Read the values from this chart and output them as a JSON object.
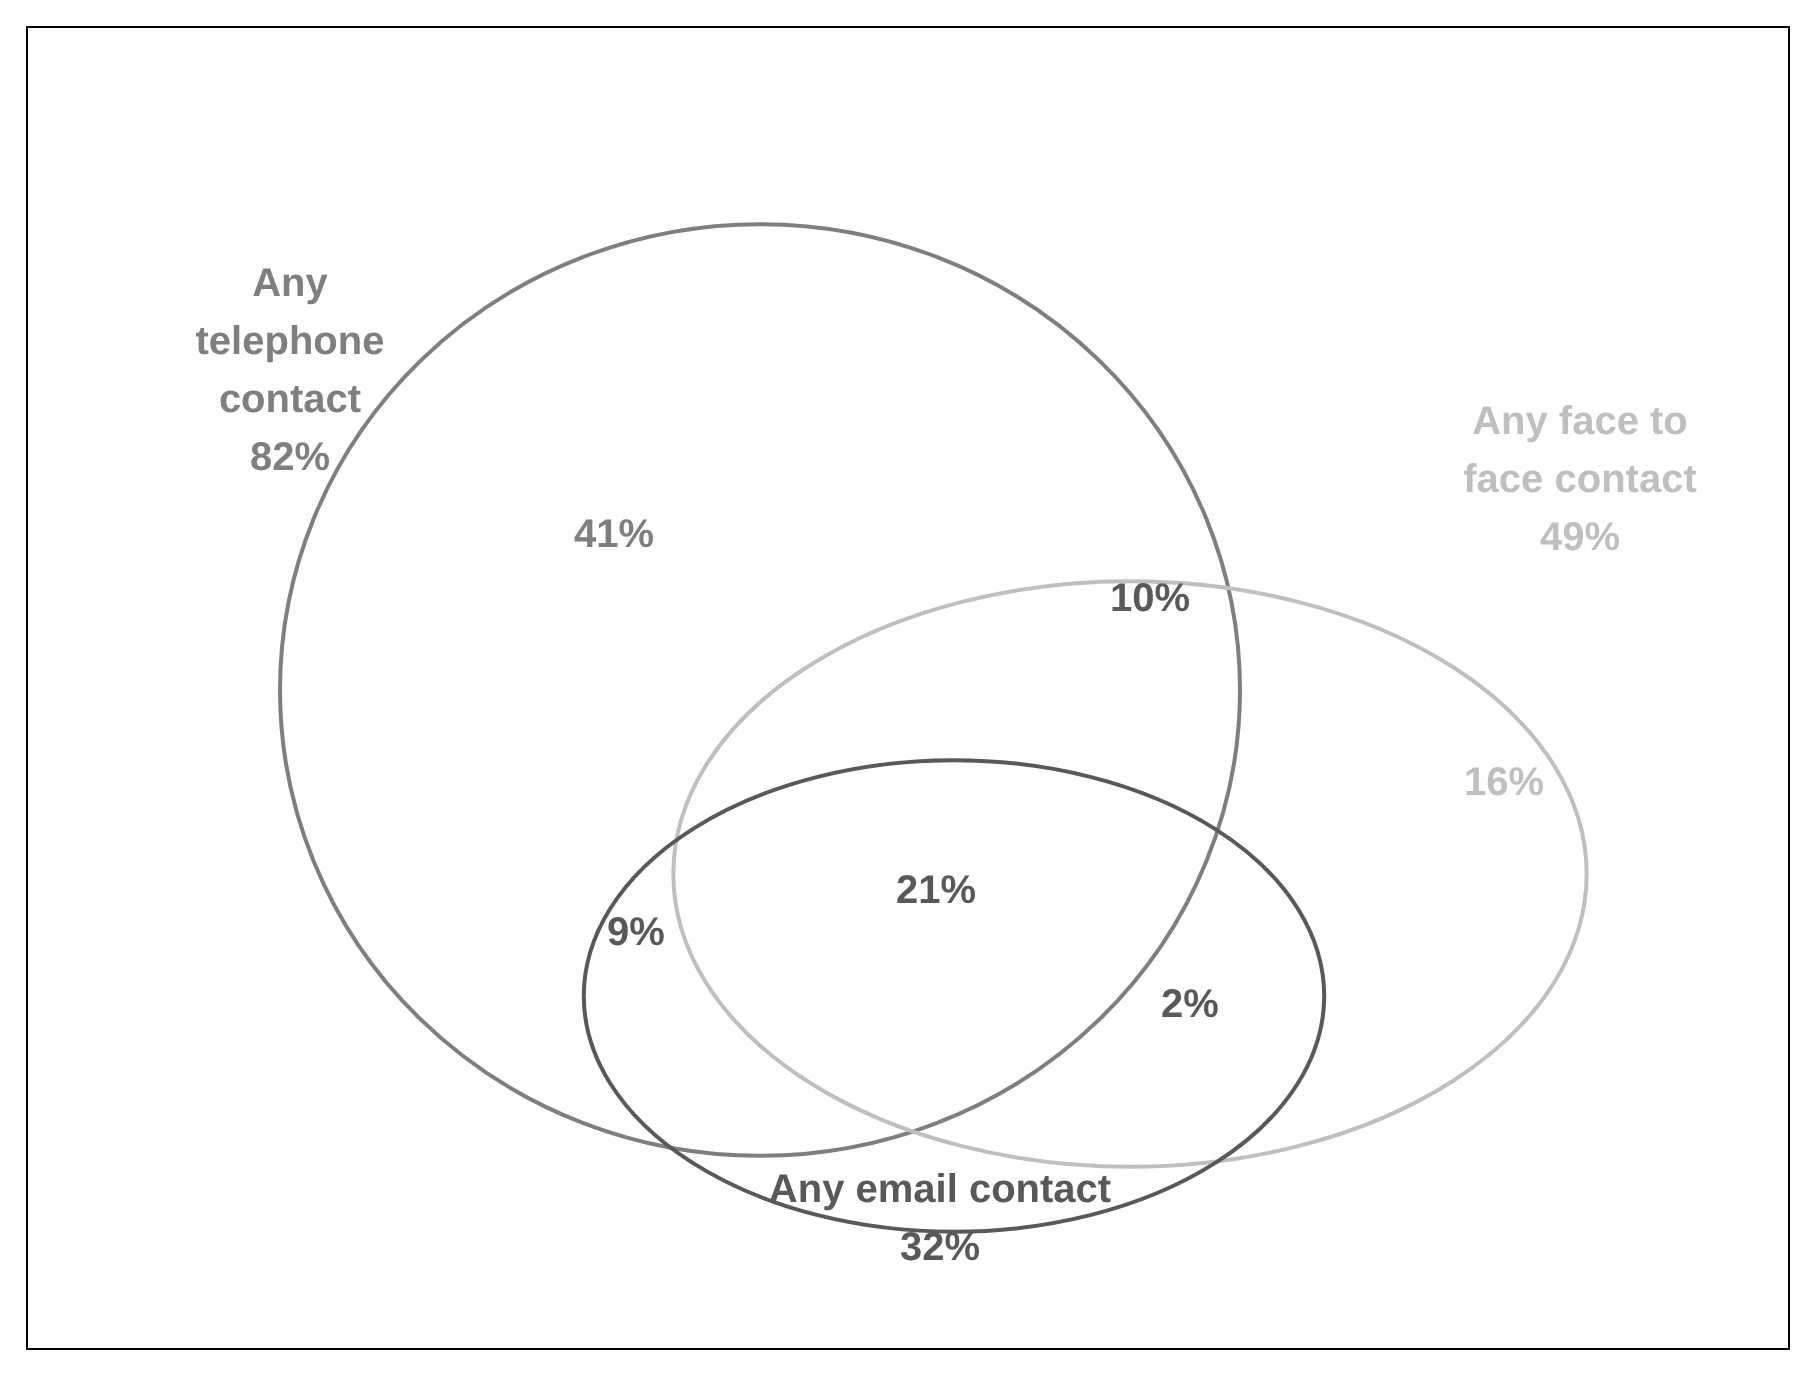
{
  "chart_data": {
    "type": "other",
    "categories": [
      "Any telephone contact",
      "Any face to face contact",
      "Any email contact"
    ],
    "values": [
      82,
      49,
      32
    ],
    "value_labels": [
      "82%",
      "49%",
      "32%"
    ],
    "colors": [
      "#7f7f7f",
      "#bfbfbf",
      "#595959"
    ],
    "annotations": [
      "41%",
      "10%",
      "16%",
      "9%",
      "21%",
      "2%"
    ]
  }
}
